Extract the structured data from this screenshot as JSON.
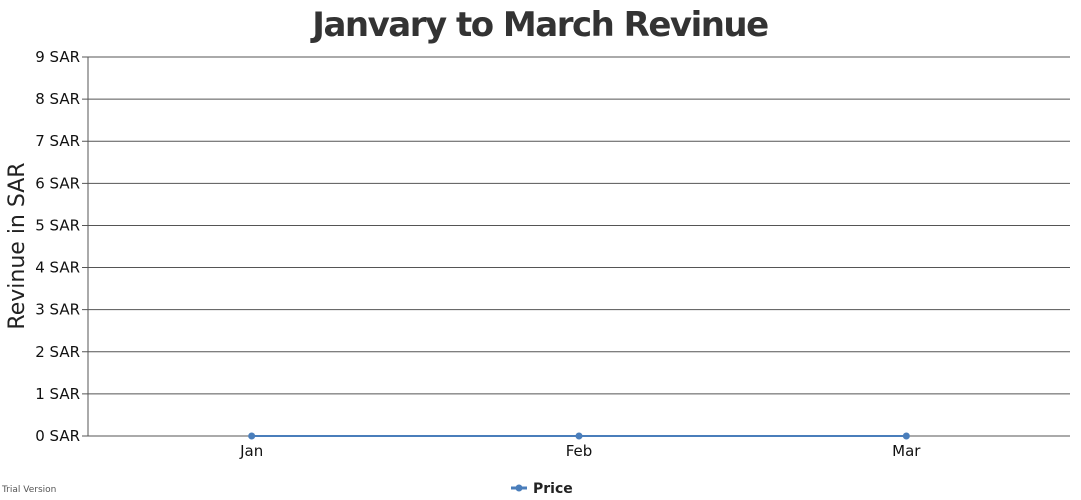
{
  "chart_data": {
    "type": "line",
    "title": "Janvary to March Revinue",
    "xlabel": "",
    "ylabel": "Revinue in SAR",
    "categories": [
      "Jan",
      "Feb",
      "Mar"
    ],
    "series": [
      {
        "name": "Price",
        "values": [
          0,
          0,
          0
        ],
        "color": "#4a7ebb"
      }
    ],
    "ylim": [
      0,
      9
    ],
    "yticks": [
      "0 SAR",
      "1 SAR",
      "2 SAR",
      "3 SAR",
      "4 SAR",
      "5 SAR",
      "6 SAR",
      "7 SAR",
      "8 SAR",
      "9 SAR"
    ],
    "grid": true,
    "legend": "bottom-center"
  },
  "footer": {
    "trial_text": "Trial Version"
  }
}
